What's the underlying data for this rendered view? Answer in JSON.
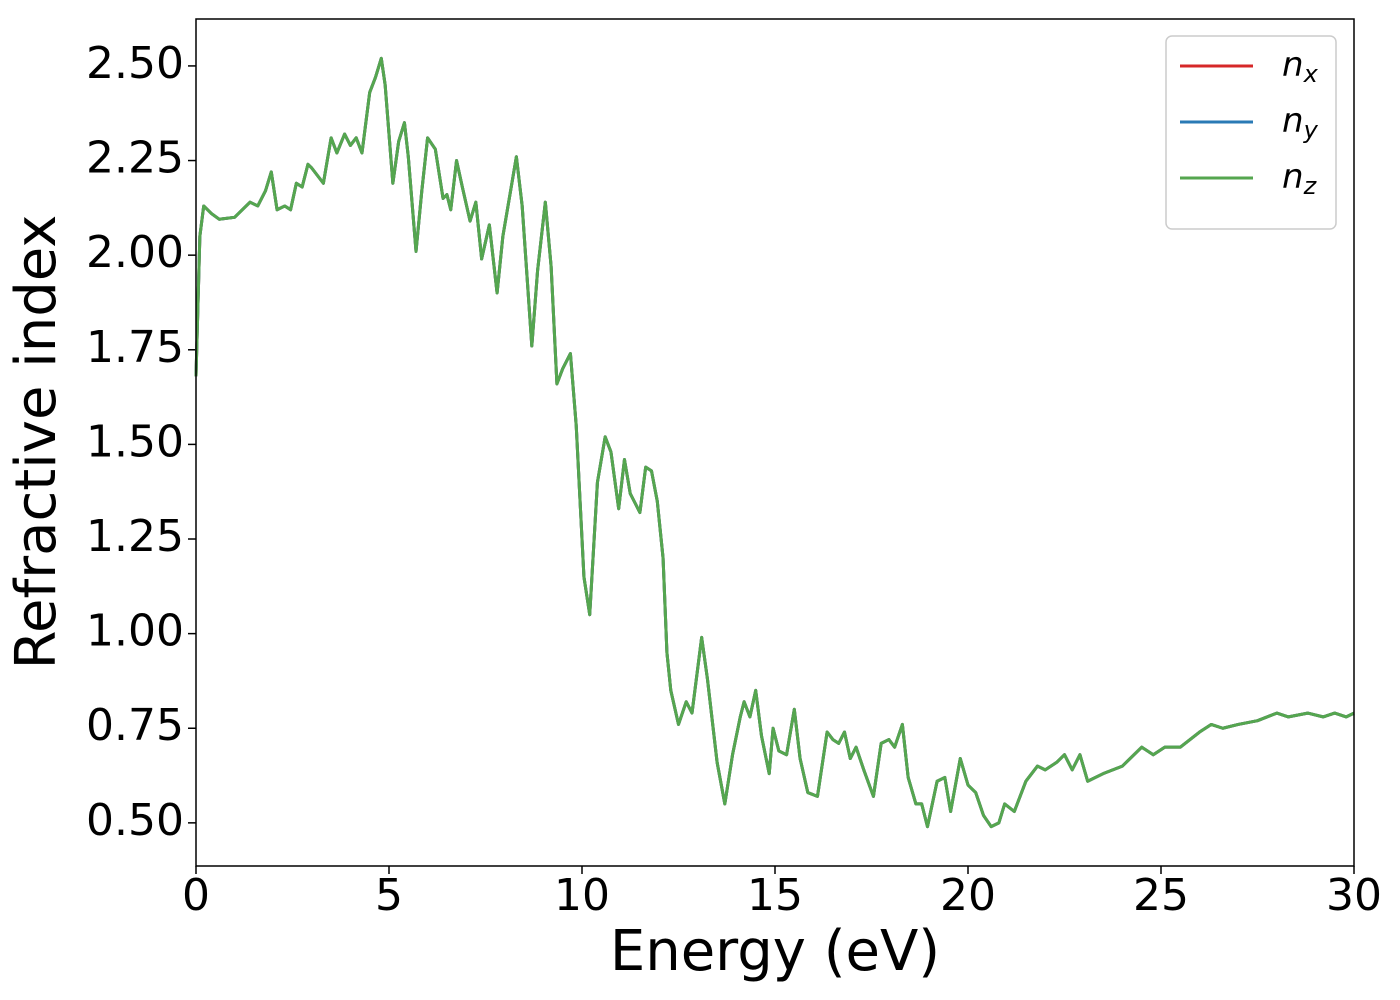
{
  "chart_data": {
    "type": "line",
    "xlabel": "Energy (eV)",
    "ylabel": "Refractive index",
    "x": [
      0,
      0.1,
      0.2,
      0.4,
      0.6,
      1.0,
      1.4,
      1.6,
      1.8,
      1.95,
      2.1,
      2.3,
      2.45,
      2.6,
      2.75,
      2.9,
      3.0,
      3.3,
      3.5,
      3.65,
      3.85,
      4.0,
      4.15,
      4.3,
      4.5,
      4.65,
      4.8,
      4.9,
      5.1,
      5.25,
      5.4,
      5.5,
      5.7,
      5.85,
      6.0,
      6.2,
      6.4,
      6.5,
      6.6,
      6.75,
      6.9,
      7.1,
      7.25,
      7.4,
      7.6,
      7.8,
      7.95,
      8.1,
      8.3,
      8.45,
      8.7,
      8.85,
      9.05,
      9.2,
      9.35,
      9.5,
      9.7,
      9.85,
      10.05,
      10.2,
      10.4,
      10.6,
      10.75,
      10.95,
      11.1,
      11.25,
      11.5,
      11.65,
      11.8,
      11.95,
      12.1,
      12.2,
      12.3,
      12.5,
      12.7,
      12.85,
      13.1,
      13.25,
      13.5,
      13.7,
      13.9,
      14.1,
      14.2,
      14.35,
      14.5,
      14.65,
      14.85,
      14.95,
      15.1,
      15.3,
      15.5,
      15.65,
      15.85,
      16.1,
      16.35,
      16.5,
      16.65,
      16.8,
      16.95,
      17.1,
      17.3,
      17.55,
      17.75,
      17.95,
      18.1,
      18.3,
      18.45,
      18.65,
      18.8,
      18.95,
      19.2,
      19.4,
      19.55,
      19.8,
      20.0,
      20.2,
      20.4,
      20.6,
      20.8,
      20.95,
      21.2,
      21.5,
      21.8,
      22.0,
      22.3,
      22.5,
      22.7,
      22.9,
      23.1,
      23.5,
      24.0,
      24.5,
      24.8,
      25.1,
      25.5,
      26.0,
      26.3,
      26.6,
      27.0,
      27.5,
      28.0,
      28.3,
      28.8,
      29.2,
      29.5,
      29.8,
      30.0
    ],
    "series": [
      {
        "name": "nx",
        "color": "#d62728",
        "values": [
          1.68,
          2.05,
          2.13,
          2.11,
          2.095,
          2.1,
          2.14,
          2.13,
          2.17,
          2.22,
          2.12,
          2.13,
          2.12,
          2.19,
          2.18,
          2.24,
          2.23,
          2.19,
          2.31,
          2.27,
          2.32,
          2.29,
          2.31,
          2.27,
          2.43,
          2.47,
          2.52,
          2.45,
          2.19,
          2.3,
          2.35,
          2.26,
          2.01,
          2.17,
          2.31,
          2.28,
          2.15,
          2.16,
          2.12,
          2.25,
          2.18,
          2.09,
          2.14,
          1.99,
          2.08,
          1.9,
          2.05,
          2.14,
          2.26,
          2.13,
          1.76,
          1.96,
          2.14,
          1.97,
          1.66,
          1.7,
          1.74,
          1.55,
          1.15,
          1.05,
          1.4,
          1.52,
          1.48,
          1.33,
          1.46,
          1.37,
          1.32,
          1.44,
          1.43,
          1.35,
          1.2,
          0.95,
          0.85,
          0.76,
          0.82,
          0.79,
          0.99,
          0.88,
          0.66,
          0.55,
          0.68,
          0.78,
          0.82,
          0.78,
          0.85,
          0.73,
          0.63,
          0.75,
          0.69,
          0.68,
          0.8,
          0.67,
          0.58,
          0.57,
          0.74,
          0.72,
          0.71,
          0.74,
          0.67,
          0.7,
          0.64,
          0.57,
          0.71,
          0.72,
          0.7,
          0.76,
          0.62,
          0.55,
          0.55,
          0.49,
          0.61,
          0.62,
          0.53,
          0.67,
          0.6,
          0.58,
          0.52,
          0.49,
          0.5,
          0.55,
          0.53,
          0.61,
          0.65,
          0.64,
          0.66,
          0.68,
          0.64,
          0.68,
          0.61,
          0.63,
          0.65,
          0.7,
          0.68,
          0.7,
          0.7,
          0.74,
          0.76,
          0.75,
          0.76,
          0.77,
          0.79,
          0.78,
          0.79,
          0.78,
          0.79,
          0.78,
          0.79
        ]
      },
      {
        "name": "ny",
        "color": "#2a7ab5",
        "values": [
          1.68,
          2.05,
          2.13,
          2.11,
          2.095,
          2.1,
          2.14,
          2.13,
          2.17,
          2.22,
          2.12,
          2.13,
          2.12,
          2.19,
          2.18,
          2.24,
          2.23,
          2.19,
          2.31,
          2.27,
          2.32,
          2.29,
          2.31,
          2.27,
          2.43,
          2.47,
          2.52,
          2.45,
          2.19,
          2.3,
          2.35,
          2.26,
          2.01,
          2.17,
          2.31,
          2.28,
          2.15,
          2.16,
          2.12,
          2.25,
          2.18,
          2.09,
          2.14,
          1.99,
          2.08,
          1.9,
          2.05,
          2.14,
          2.26,
          2.13,
          1.76,
          1.96,
          2.14,
          1.97,
          1.66,
          1.7,
          1.74,
          1.55,
          1.15,
          1.05,
          1.4,
          1.52,
          1.48,
          1.33,
          1.46,
          1.37,
          1.32,
          1.44,
          1.43,
          1.35,
          1.2,
          0.95,
          0.85,
          0.76,
          0.82,
          0.79,
          0.99,
          0.88,
          0.66,
          0.55,
          0.68,
          0.78,
          0.82,
          0.78,
          0.85,
          0.73,
          0.63,
          0.75,
          0.69,
          0.68,
          0.8,
          0.67,
          0.58,
          0.57,
          0.74,
          0.72,
          0.71,
          0.74,
          0.67,
          0.7,
          0.64,
          0.57,
          0.71,
          0.72,
          0.7,
          0.76,
          0.62,
          0.55,
          0.55,
          0.49,
          0.61,
          0.62,
          0.53,
          0.67,
          0.6,
          0.58,
          0.52,
          0.49,
          0.5,
          0.55,
          0.53,
          0.61,
          0.65,
          0.64,
          0.66,
          0.68,
          0.64,
          0.68,
          0.61,
          0.63,
          0.65,
          0.7,
          0.68,
          0.7,
          0.7,
          0.74,
          0.76,
          0.75,
          0.76,
          0.77,
          0.79,
          0.78,
          0.79,
          0.78,
          0.79,
          0.78,
          0.79
        ]
      },
      {
        "name": "nz",
        "color": "#55a64f",
        "values": [
          1.68,
          2.05,
          2.13,
          2.11,
          2.095,
          2.1,
          2.14,
          2.13,
          2.17,
          2.22,
          2.12,
          2.13,
          2.12,
          2.19,
          2.18,
          2.24,
          2.23,
          2.19,
          2.31,
          2.27,
          2.32,
          2.29,
          2.31,
          2.27,
          2.43,
          2.47,
          2.52,
          2.45,
          2.19,
          2.3,
          2.35,
          2.26,
          2.01,
          2.17,
          2.31,
          2.28,
          2.15,
          2.16,
          2.12,
          2.25,
          2.18,
          2.09,
          2.14,
          1.99,
          2.08,
          1.9,
          2.05,
          2.14,
          2.26,
          2.13,
          1.76,
          1.96,
          2.14,
          1.97,
          1.66,
          1.7,
          1.74,
          1.55,
          1.15,
          1.05,
          1.4,
          1.52,
          1.48,
          1.33,
          1.46,
          1.37,
          1.32,
          1.44,
          1.43,
          1.35,
          1.2,
          0.95,
          0.85,
          0.76,
          0.82,
          0.79,
          0.99,
          0.88,
          0.66,
          0.55,
          0.68,
          0.78,
          0.82,
          0.78,
          0.85,
          0.73,
          0.63,
          0.75,
          0.69,
          0.68,
          0.8,
          0.67,
          0.58,
          0.57,
          0.74,
          0.72,
          0.71,
          0.74,
          0.67,
          0.7,
          0.64,
          0.57,
          0.71,
          0.72,
          0.7,
          0.76,
          0.62,
          0.55,
          0.55,
          0.49,
          0.61,
          0.62,
          0.53,
          0.67,
          0.6,
          0.58,
          0.52,
          0.49,
          0.5,
          0.55,
          0.53,
          0.61,
          0.65,
          0.64,
          0.66,
          0.68,
          0.64,
          0.68,
          0.61,
          0.63,
          0.65,
          0.7,
          0.68,
          0.7,
          0.7,
          0.74,
          0.76,
          0.75,
          0.76,
          0.77,
          0.79,
          0.78,
          0.79,
          0.78,
          0.79,
          0.78,
          0.79
        ]
      }
    ],
    "xlim": [
      0,
      30
    ],
    "xticks": [
      0,
      5,
      10,
      15,
      20,
      25,
      30
    ],
    "ylim": [
      0.386,
      2.624
    ],
    "yticks": [
      {
        "value": 0.5,
        "label": "0.50"
      },
      {
        "value": 0.75,
        "label": "0.75"
      },
      {
        "value": 1.0,
        "label": "1.00"
      },
      {
        "value": 1.25,
        "label": "1.25"
      },
      {
        "value": 1.5,
        "label": "1.50"
      },
      {
        "value": 1.75,
        "label": "1.75"
      },
      {
        "value": 2.0,
        "label": "2.00"
      },
      {
        "value": 2.25,
        "label": "2.25"
      },
      {
        "value": 2.5,
        "label": "2.50"
      }
    ],
    "grid": false,
    "legend": "upper right"
  }
}
